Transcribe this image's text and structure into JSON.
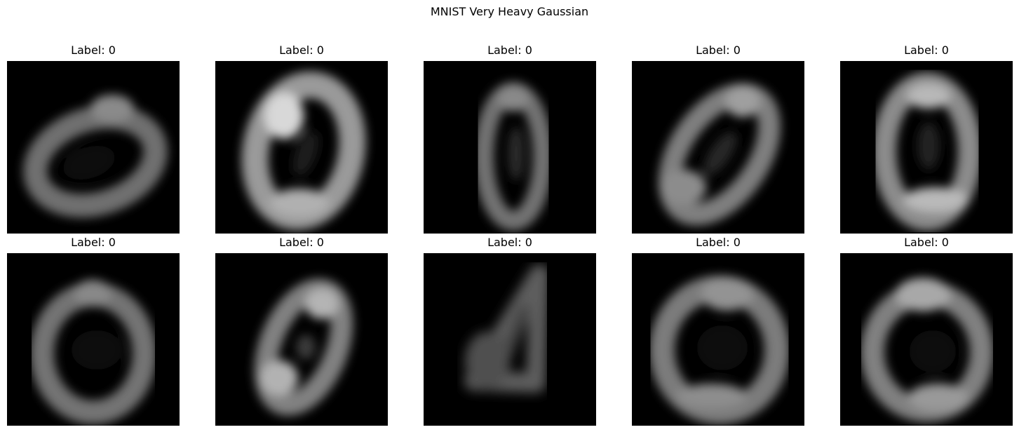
{
  "figure": {
    "title": "MNIST Very Heavy Gaussian"
  },
  "panels": [
    {
      "label": "Label: 0",
      "variant": "tilted-oval"
    },
    {
      "label": "Label: 0",
      "variant": "bright-left-oval"
    },
    {
      "label": "Label: 0",
      "variant": "narrow-vertical-oval"
    },
    {
      "label": "Label: 0",
      "variant": "diagonal-oval"
    },
    {
      "label": "Label: 0",
      "variant": "bright-vertical-oval"
    },
    {
      "label": "Label: 0",
      "variant": "round-oval"
    },
    {
      "label": "Label: 0",
      "variant": "slanted-small-oval"
    },
    {
      "label": "Label: 0",
      "variant": "faint-angled-stroke"
    },
    {
      "label": "Label: 0",
      "variant": "wide-round-oval"
    },
    {
      "label": "Label: 0",
      "variant": "soft-round-oval"
    }
  ]
}
